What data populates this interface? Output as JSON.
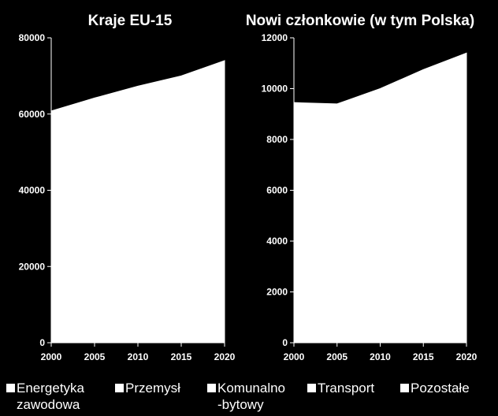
{
  "chart_data": [
    {
      "type": "area",
      "title": "Kraje EU-15",
      "x": [
        2000,
        2005,
        2010,
        2015,
        2020
      ],
      "series": [
        {
          "values": [
            60800,
            64200,
            67300,
            70000,
            74000
          ]
        }
      ],
      "ylim": [
        0,
        80000
      ],
      "yticks": [
        "0",
        "20000",
        "40000",
        "60000",
        "80000"
      ],
      "xticks": [
        "2000",
        "2005",
        "2010",
        "2015",
        "2020"
      ],
      "grid": false
    },
    {
      "type": "area",
      "title": "Nowi członkowie (w tym Polska)",
      "x": [
        2000,
        2005,
        2010,
        2015,
        2020
      ],
      "series": [
        {
          "values": [
            9450,
            9400,
            10000,
            10750,
            11400
          ]
        }
      ],
      "ylim": [
        0,
        12000
      ],
      "yticks": [
        "0",
        "2000",
        "4000",
        "6000",
        "8000",
        "10000",
        "12000"
      ],
      "xticks": [
        "2000",
        "2005",
        "2010",
        "2015",
        "2020"
      ],
      "grid": false
    }
  ],
  "legend": [
    {
      "label": "Energetyka\nzawodowa"
    },
    {
      "label": "Przemysł"
    },
    {
      "label": "Komunalno\n-bytowy"
    },
    {
      "label": "Transport"
    },
    {
      "label": "Pozostałe"
    }
  ],
  "colors": {
    "background": "#000000",
    "area_fill": "#ffffff",
    "text": "#ffffff"
  }
}
